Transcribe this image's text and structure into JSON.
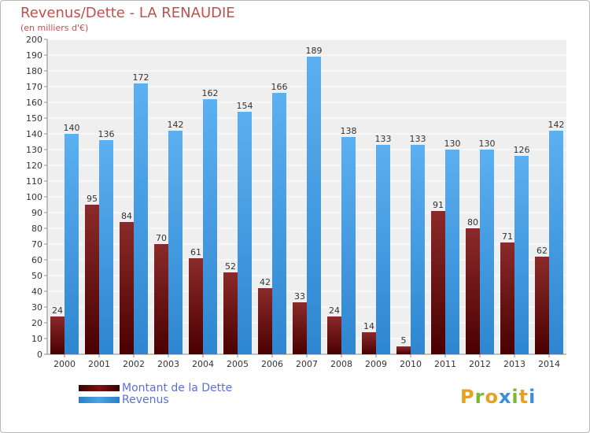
{
  "header": {
    "title": "Revenus/Dette - LA RENAUDIE",
    "subtitle": "(en milliers d'€)"
  },
  "legend": {
    "debt_label": "Montant de la Dette",
    "revenue_label": "Revenus"
  },
  "logo": {
    "text": "Proxiti"
  },
  "colors": {
    "debt": "#7a1414",
    "revenue": "#4ba3e8",
    "title": "#c0504d",
    "legend_text": "#5b6fd6"
  },
  "chart_data": {
    "type": "bar",
    "title": "Revenus/Dette - LA RENAUDIE",
    "subtitle": "(en milliers d'€)",
    "categories": [
      "2000",
      "2001",
      "2002",
      "2003",
      "2004",
      "2005",
      "2006",
      "2007",
      "2008",
      "2009",
      "2010",
      "2011",
      "2012",
      "2013",
      "2014"
    ],
    "series": [
      {
        "name": "Montant de la Dette",
        "values": [
          24,
          95,
          84,
          70,
          61,
          52,
          42,
          33,
          24,
          14,
          5,
          91,
          80,
          71,
          62
        ]
      },
      {
        "name": "Revenus",
        "values": [
          140,
          136,
          172,
          142,
          162,
          154,
          166,
          189,
          138,
          133,
          133,
          130,
          130,
          126,
          142
        ]
      }
    ],
    "ylim": [
      0,
      200
    ],
    "yticks": [
      0,
      10,
      20,
      30,
      40,
      50,
      60,
      70,
      80,
      90,
      100,
      110,
      120,
      130,
      140,
      150,
      160,
      170,
      180,
      190,
      200
    ],
    "grid": true,
    "legend_position": "bottom-left"
  }
}
